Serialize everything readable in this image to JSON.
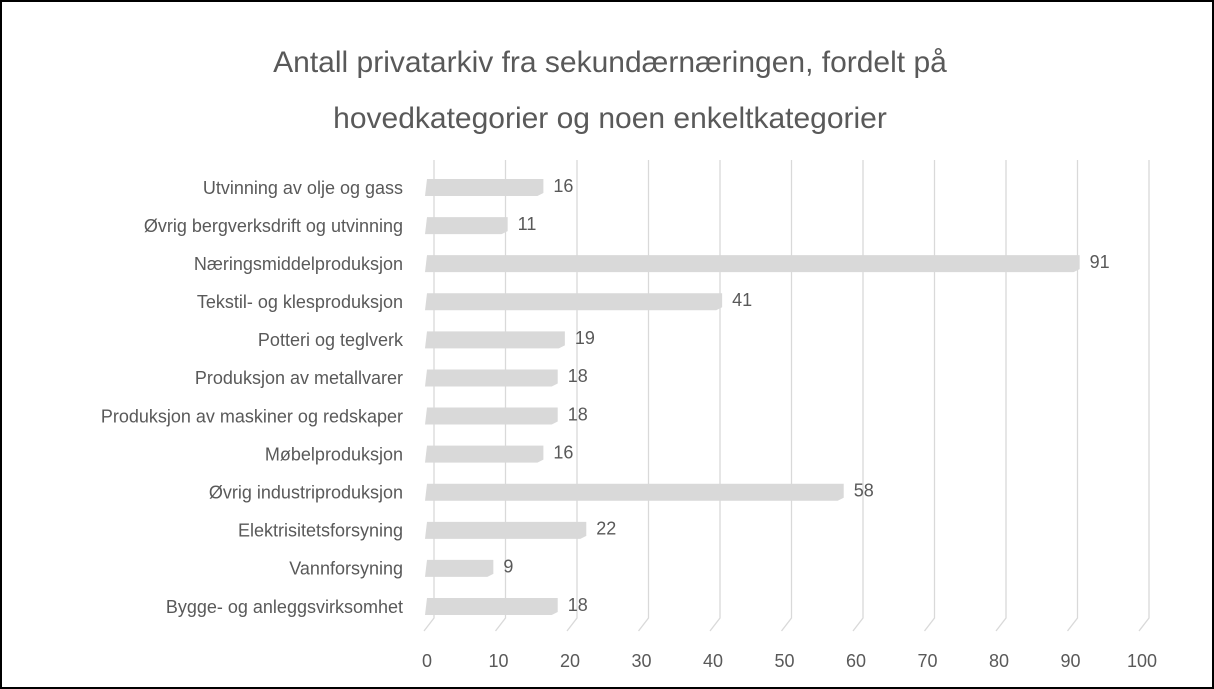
{
  "chart_data": {
    "type": "bar",
    "title": [
      "Antall privatarkiv fra sekundærnæringen, fordelt på",
      "hovedkategorier og noen enkeltkategorier"
    ],
    "categories": [
      "Utvinning av olje og gass",
      "Øvrig bergverksdrift og utvinning",
      "Næringsmiddelproduksjon",
      "Tekstil- og klesproduksjon",
      "Potteri og teglverk",
      "Produksjon av metallvarer",
      "Produksjon av maskiner og redskaper",
      "Møbelproduksjon",
      "Øvrig industriproduksjon",
      "Elektrisitetsforsyning",
      "Vannforsyning",
      "Bygge- og anleggsvirksomhet"
    ],
    "values": [
      16,
      11,
      91,
      41,
      19,
      18,
      18,
      16,
      58,
      22,
      9,
      18
    ],
    "color": "#d9d9d9",
    "xlim": [
      0,
      100
    ],
    "xticks": [
      0,
      10,
      20,
      30,
      40,
      50,
      60,
      70,
      80,
      90,
      100
    ],
    "grid": true
  }
}
